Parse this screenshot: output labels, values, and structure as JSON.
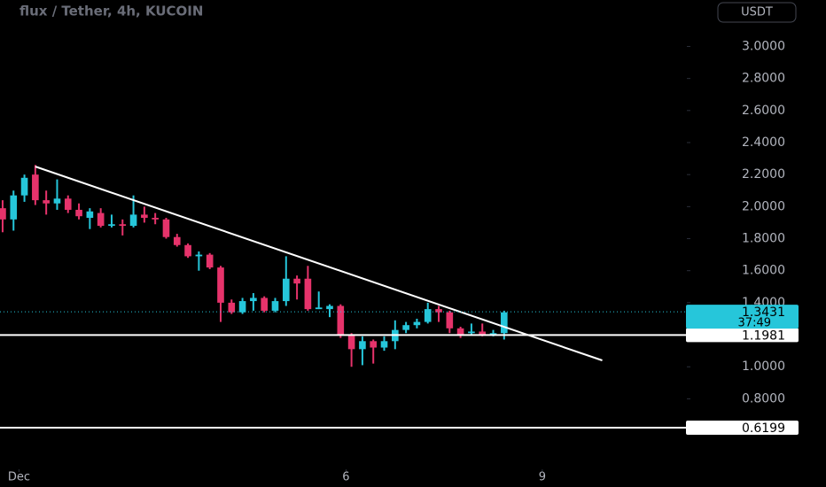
{
  "chart_data": {
    "type": "candlestick",
    "title": "flux / Tether, 4h, KUCOIN",
    "currency": "USDT",
    "x": [
      0,
      1,
      2,
      3,
      4,
      5,
      6,
      7,
      8,
      9,
      10,
      11,
      12,
      13,
      14,
      15,
      16,
      17,
      18,
      19,
      20,
      21,
      22,
      23,
      24,
      25,
      26,
      27,
      28,
      29,
      30,
      31,
      32,
      33,
      34,
      35,
      36,
      37,
      38,
      39,
      40,
      41,
      42,
      43,
      44,
      45,
      46
    ],
    "open": [
      1.99,
      1.92,
      2.07,
      2.2,
      2.04,
      2.02,
      2.05,
      1.98,
      1.93,
      1.96,
      1.88,
      1.89,
      1.88,
      1.95,
      1.93,
      1.92,
      1.81,
      1.76,
      1.69,
      1.7,
      1.62,
      1.4,
      1.34,
      1.41,
      1.43,
      1.35,
      1.41,
      1.55,
      1.55,
      1.36,
      1.36,
      1.38,
      1.2,
      1.11,
      1.16,
      1.12,
      1.16,
      1.23,
      1.26,
      1.28,
      1.36,
      1.34,
      1.24,
      1.21,
      1.22,
      1.2,
      1.21
    ],
    "high": [
      2.04,
      2.1,
      2.2,
      2.26,
      2.1,
      2.17,
      2.07,
      2.02,
      1.99,
      1.99,
      1.95,
      1.92,
      2.07,
      2.0,
      1.96,
      1.93,
      1.83,
      1.77,
      1.72,
      1.71,
      1.63,
      1.42,
      1.43,
      1.46,
      1.44,
      1.43,
      1.69,
      1.57,
      1.63,
      1.47,
      1.39,
      1.39,
      1.21,
      1.19,
      1.17,
      1.19,
      1.29,
      1.28,
      1.3,
      1.4,
      1.38,
      1.35,
      1.25,
      1.27,
      1.27,
      1.23,
      1.35
    ],
    "low": [
      1.84,
      1.85,
      2.03,
      2.01,
      1.95,
      1.98,
      1.96,
      1.92,
      1.86,
      1.87,
      1.87,
      1.82,
      1.87,
      1.9,
      1.89,
      1.8,
      1.75,
      1.68,
      1.6,
      1.61,
      1.28,
      1.33,
      1.33,
      1.35,
      1.34,
      1.34,
      1.38,
      1.42,
      1.35,
      1.36,
      1.31,
      1.18,
      1.0,
      1.01,
      1.02,
      1.1,
      1.11,
      1.21,
      1.24,
      1.27,
      1.28,
      1.21,
      1.18,
      1.2,
      1.19,
      1.19,
      1.17
    ],
    "close": [
      1.92,
      2.07,
      2.18,
      2.04,
      2.02,
      2.05,
      1.98,
      1.94,
      1.97,
      1.88,
      1.89,
      1.88,
      1.95,
      1.93,
      1.92,
      1.81,
      1.76,
      1.69,
      1.7,
      1.62,
      1.4,
      1.34,
      1.41,
      1.43,
      1.35,
      1.41,
      1.55,
      1.52,
      1.36,
      1.37,
      1.38,
      1.2,
      1.11,
      1.16,
      1.12,
      1.16,
      1.23,
      1.26,
      1.28,
      1.36,
      1.34,
      1.24,
      1.2,
      1.22,
      1.2,
      1.21,
      1.34
    ],
    "up_color": "#26c6da",
    "down_color": "#e6336b",
    "xlim": [
      -0.24,
      62.76
    ],
    "ylim": [
      0.36,
      3.29
    ],
    "xticks": [
      {
        "value": 1.5,
        "label": "Dec"
      },
      {
        "value": 31.5,
        "label": "6"
      },
      {
        "value": 49.5,
        "label": "9"
      }
    ],
    "yticks": [
      {
        "value": 0.8,
        "label": "0.8000"
      },
      {
        "value": 1,
        "label": "1.0000"
      },
      {
        "value": 1.2,
        "label": "1.2000"
      },
      {
        "value": 1.4,
        "label": "1.4000"
      },
      {
        "value": 1.6,
        "label": "1.6000"
      },
      {
        "value": 1.8,
        "label": "1.8000"
      },
      {
        "value": 2,
        "label": "2.0000"
      },
      {
        "value": 2.2,
        "label": "2.2000"
      },
      {
        "value": 2.4,
        "label": "2.4000"
      },
      {
        "value": 2.6,
        "label": "2.6000"
      },
      {
        "value": 2.8,
        "label": "2.8000"
      },
      {
        "value": 3,
        "label": "3.0000"
      }
    ],
    "trendline": {
      "x": [
        3,
        55
      ],
      "y": [
        2.25,
        1.04
      ]
    },
    "levels": [
      1.1981,
      0.6199
    ],
    "last_price": 1.3431,
    "countdown": "37:49"
  }
}
